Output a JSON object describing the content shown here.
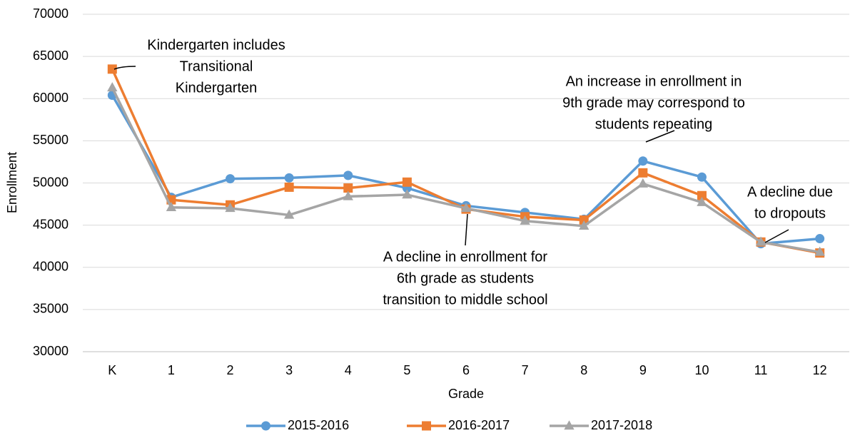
{
  "chart_data": {
    "type": "line",
    "x_label": "Grade",
    "y_label": "Enrollment",
    "categories": [
      "K",
      "1",
      "2",
      "3",
      "4",
      "5",
      "6",
      "7",
      "8",
      "9",
      "10",
      "11",
      "12"
    ],
    "series": [
      {
        "name": "2015-2016",
        "color": "#5b9bd5",
        "marker": "circle",
        "values": [
          60400,
          48300,
          50500,
          50600,
          50900,
          49400,
          47300,
          46500,
          45700,
          52600,
          50700,
          42800,
          43400
        ]
      },
      {
        "name": "2016-2017",
        "color": "#ed7d31",
        "marker": "square",
        "values": [
          63500,
          48000,
          47400,
          49500,
          49400,
          50100,
          46900,
          46000,
          45600,
          51200,
          48500,
          43000,
          41700
        ]
      },
      {
        "name": "2017-2018",
        "color": "#a5a5a5",
        "marker": "triangle",
        "values": [
          61300,
          47100,
          47000,
          46200,
          48400,
          48600,
          47000,
          45500,
          44900,
          49900,
          47700,
          43000,
          41800
        ]
      }
    ],
    "ylim": [
      30000,
      70000
    ],
    "yticks": [
      30000,
      35000,
      40000,
      45000,
      50000,
      55000,
      60000,
      65000,
      70000
    ],
    "grid": true,
    "legend": "bottom",
    "annotations": [
      {
        "lines": [
          "Kindergarten includes",
          "Transitional",
          "Kindergarten"
        ]
      },
      {
        "lines": [
          "An increase in enrollment in",
          "9th grade may correspond to",
          "students repeating"
        ]
      },
      {
        "lines": [
          "A decline due",
          "to dropouts"
        ]
      },
      {
        "lines": [
          "A decline in enrollment for",
          "6th grade as students",
          "transition to middle school"
        ]
      }
    ]
  }
}
